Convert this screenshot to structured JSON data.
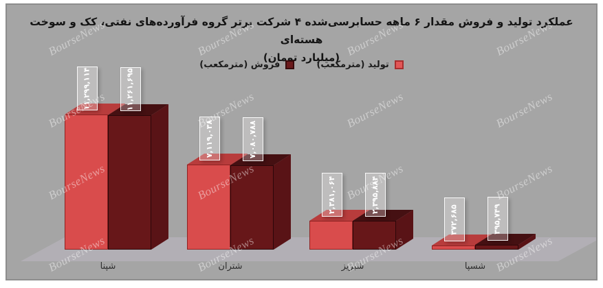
{
  "watermark": {
    "text": "BourseNews"
  },
  "chart_data": {
    "type": "bar",
    "title_line1": "عملکرد تولید و فروش مقدار ۶ ماهه حسابرسی‌شده ۴ شرکت برتر گروه فرآورده‌های نفتی، کک و سوخت هسته‌ای",
    "title_line2": "(میلیارد تومان)",
    "categories": [
      "شپنا",
      "شتران",
      "شبریز",
      "شسپا"
    ],
    "series": [
      {
        "name": "تولید (مترمکعب)",
        "values": [
          11299114,
          7119038,
          2381064,
          372685
        ],
        "labels_fa": [
          "۱۱,۲۹۹,۱۱۴",
          "۷,۱۱۹,۰۳۸",
          "۲,۳۸۱,۰۶۴",
          "۳۷۲,۶۸۵"
        ],
        "color_front": "#d94c4c",
        "color_top": "#b83c3c",
        "color_side": "#a83434",
        "color_edge": "#8e2222",
        "swatch_fill": "#e25757",
        "swatch_border": "#a82e2e"
      },
      {
        "name": "فروش (مترمکعب)",
        "values": [
          11261695,
          7080788,
          2395884,
          395749
        ],
        "labels_fa": [
          "۱۱,۲۶۱,۶۹۵",
          "۷,۰۸۰,۷۸۸",
          "۲,۳۹۵,۸۸۴",
          "۳۹۵,۷۴۹"
        ],
        "color_front": "#671719",
        "color_top": "#451012",
        "color_side": "#591316",
        "color_edge": "#2c0709",
        "swatch_fill": "#6b1a1c",
        "swatch_border": "#380b0c"
      }
    ],
    "legend_order": [
      1,
      0
    ],
    "ylim": [
      0,
      11299114
    ],
    "grid": false,
    "legend_position": "top-center",
    "background_color": "#a5a5a5",
    "floor_color": "#b2afb5"
  },
  "legend": {
    "items": [
      {
        "label": "فروش (مترمکعب)"
      },
      {
        "label": "تولید (مترمکعب)"
      }
    ]
  }
}
